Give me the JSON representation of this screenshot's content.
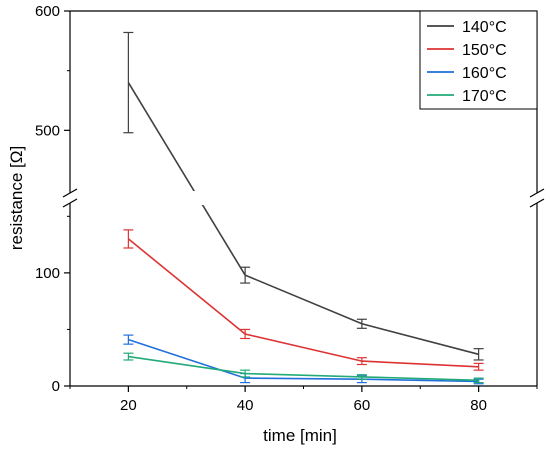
{
  "chart_data": {
    "type": "line",
    "xlabel": "time [min]",
    "ylabel": "resistance [Ω]",
    "x": [
      20,
      40,
      60,
      80
    ],
    "x_ticks": [
      20,
      40,
      60,
      80
    ],
    "xlim": [
      10,
      90
    ],
    "y_axis_break": {
      "lower_range": [
        0,
        160
      ],
      "upper_range": [
        450,
        600
      ],
      "lower_ticks": [
        0,
        100
      ],
      "upper_ticks": [
        500,
        600
      ]
    },
    "series": [
      {
        "name": "140°C",
        "color": "#404040",
        "values": [
          540,
          98,
          55,
          28
        ],
        "errors": [
          42,
          7,
          4,
          5
        ]
      },
      {
        "name": "150°C",
        "color": "#dd3333",
        "values": [
          130,
          46,
          22,
          17
        ],
        "errors": [
          8,
          4,
          3,
          3
        ]
      },
      {
        "name": "160°C",
        "color": "#1f6fdc",
        "values": [
          41,
          7,
          6,
          4
        ],
        "errors": [
          4,
          4,
          3,
          2
        ]
      },
      {
        "name": "170°C",
        "color": "#22aa77",
        "values": [
          26,
          11,
          8,
          5
        ],
        "errors": [
          3,
          3,
          2,
          2
        ]
      }
    ],
    "legend_position": "top-right",
    "grid": false
  }
}
